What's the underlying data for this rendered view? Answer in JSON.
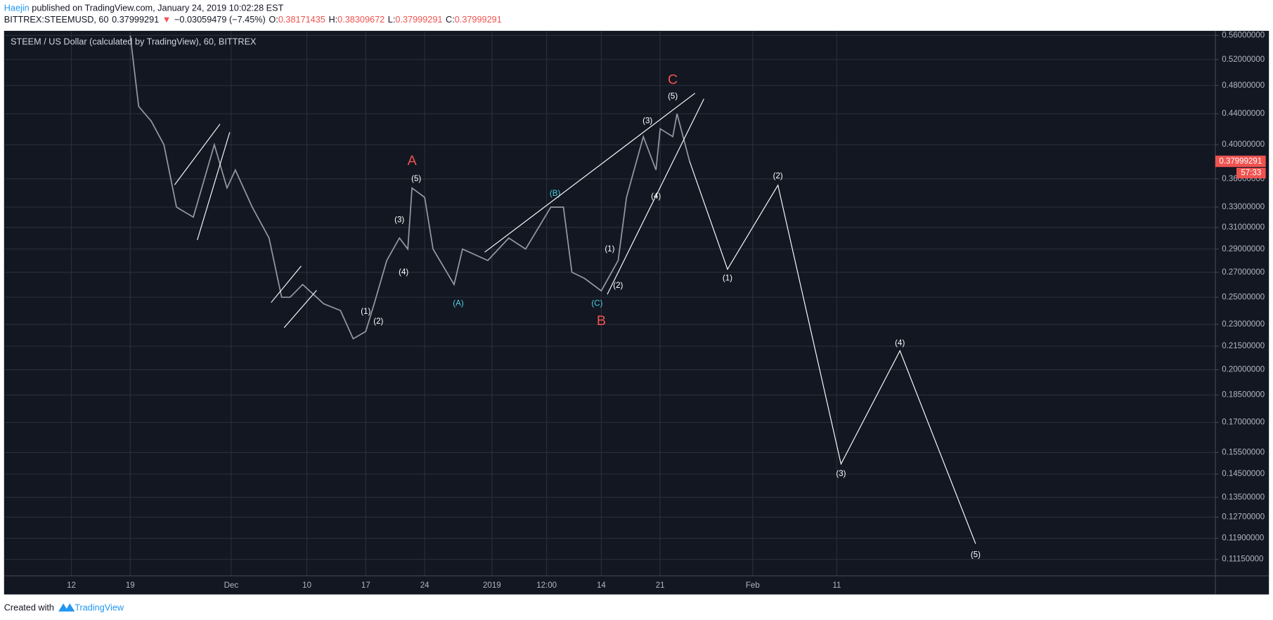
{
  "header": {
    "author": "Haejin",
    "published": " published on TradingView.com, January 24, 2019 10:02:28 EST",
    "symbol": "BITTREX:STEEMUSD, 60",
    "last": "0.37999291",
    "arrow": "▼",
    "change": "−0.03059479 (−7.45%)",
    "o_label": "O:",
    "o": "0.38171435",
    "h_label": "H:",
    "h": "0.38309672",
    "l_label": "L:",
    "l": "0.37999291",
    "c_label": "C:",
    "c": "0.37999291"
  },
  "chart_data": {
    "type": "line",
    "title": "STEEM / US Dollar (calculated by TradingView), 60, BITTREX",
    "log": true,
    "grid": true,
    "xlim": [
      -8,
      136
    ],
    "xticks": [
      {
        "value": 0,
        "label": "12"
      },
      {
        "value": 7,
        "label": "19"
      },
      {
        "value": 19,
        "label": "Dec"
      },
      {
        "value": 28,
        "label": "10"
      },
      {
        "value": 35,
        "label": "17"
      },
      {
        "value": 42,
        "label": "24"
      },
      {
        "value": 50,
        "label": "2019"
      },
      {
        "value": 56.5,
        "label": "12:00"
      },
      {
        "value": 63,
        "label": "14"
      },
      {
        "value": 70,
        "label": "21"
      },
      {
        "value": 81,
        "label": "Feb"
      },
      {
        "value": 91,
        "label": "11"
      }
    ],
    "ylim": [
      0.106,
      0.568
    ],
    "yticks": [
      {
        "value": 0.56,
        "label": "0.56000000"
      },
      {
        "value": 0.52,
        "label": "0.52000000"
      },
      {
        "value": 0.48,
        "label": "0.48000000"
      },
      {
        "value": 0.44,
        "label": "0.44000000"
      },
      {
        "value": 0.4,
        "label": "0.40000000"
      },
      {
        "value": 0.36,
        "label": "0.36000000"
      },
      {
        "value": 0.33,
        "label": "0.33000000"
      },
      {
        "value": 0.31,
        "label": "0.31000000"
      },
      {
        "value": 0.29,
        "label": "0.29000000"
      },
      {
        "value": 0.27,
        "label": "0.27000000"
      },
      {
        "value": 0.25,
        "label": "0.25000000"
      },
      {
        "value": 0.23,
        "label": "0.23000000"
      },
      {
        "value": 0.215,
        "label": "0.21500000"
      },
      {
        "value": 0.2,
        "label": "0.20000000"
      },
      {
        "value": 0.185,
        "label": "0.18500000"
      },
      {
        "value": 0.17,
        "label": "0.17000000"
      },
      {
        "value": 0.155,
        "label": "0.15500000"
      },
      {
        "value": 0.145,
        "label": "0.14500000"
      },
      {
        "value": 0.135,
        "label": "0.13500000"
      },
      {
        "value": 0.127,
        "label": "0.12700000"
      },
      {
        "value": 0.119,
        "label": "0.11900000"
      },
      {
        "value": 0.1115,
        "label": "0.11150000"
      }
    ],
    "series": [
      {
        "color": "#9598a1",
        "x": [
          7,
          8,
          9.5,
          11,
          12.5,
          14.5,
          17,
          18.5,
          19.5,
          21.5,
          23.5,
          25,
          26,
          27.5,
          30,
          32,
          33.5,
          35,
          36,
          37.5,
          39,
          40,
          40.5,
          42,
          43,
          45.5,
          46.5,
          49.5,
          52,
          54,
          57,
          58.5,
          59.5,
          61,
          63,
          65,
          66,
          68,
          69.5,
          70,
          71.5,
          72,
          73.5
        ],
        "values": [
          0.56,
          0.45,
          0.43,
          0.4,
          0.33,
          0.32,
          0.4,
          0.35,
          0.37,
          0.33,
          0.3,
          0.25,
          0.25,
          0.26,
          0.245,
          0.24,
          0.22,
          0.225,
          0.245,
          0.28,
          0.3,
          0.29,
          0.35,
          0.34,
          0.29,
          0.26,
          0.29,
          0.28,
          0.3,
          0.29,
          0.33,
          0.33,
          0.27,
          0.265,
          0.255,
          0.28,
          0.34,
          0.41,
          0.37,
          0.42,
          0.41,
          0.44,
          0.38
        ]
      },
      {
        "color": "#ffffff",
        "x": [
          73.5,
          78,
          84,
          91.5,
          98.5,
          107.5
        ],
        "values": [
          0.38,
          0.2725,
          0.353,
          0.1496,
          0.212,
          0.117
        ]
      }
    ],
    "annotations": [
      {
        "text": "(1)",
        "x": 35,
        "y": 0.239,
        "color": "#ffffff"
      },
      {
        "text": "(2)",
        "x": 36.5,
        "y": 0.232,
        "color": "#ffffff"
      },
      {
        "text": "(3)",
        "x": 39,
        "y": 0.317,
        "color": "#ffffff"
      },
      {
        "text": "(4)",
        "x": 39.5,
        "y": 0.27,
        "color": "#ffffff"
      },
      {
        "text": "(5)",
        "x": 41,
        "y": 0.36,
        "color": "#ffffff"
      },
      {
        "text": "A",
        "x": 40.5,
        "y": 0.38,
        "color": "#ef5350"
      },
      {
        "text": "(A)",
        "x": 46,
        "y": 0.245,
        "color": "#4dd0e1"
      },
      {
        "text": "(B)",
        "x": 57.5,
        "y": 0.344,
        "color": "#4dd0e1"
      },
      {
        "text": "(C)",
        "x": 62.5,
        "y": 0.245,
        "color": "#4dd0e1"
      },
      {
        "text": "B",
        "x": 63,
        "y": 0.232,
        "color": "#ef5350"
      },
      {
        "text": "(1)",
        "x": 64,
        "y": 0.29,
        "color": "#ffffff"
      },
      {
        "text": "(2)",
        "x": 65,
        "y": 0.259,
        "color": "#ffffff"
      },
      {
        "text": "(3)",
        "x": 68.5,
        "y": 0.43,
        "color": "#ffffff"
      },
      {
        "text": "(4)",
        "x": 69.5,
        "y": 0.341,
        "color": "#ffffff"
      },
      {
        "text": "(5)",
        "x": 71.5,
        "y": 0.464,
        "color": "#ffffff"
      },
      {
        "text": "C",
        "x": 71.5,
        "y": 0.488,
        "color": "#ef5350"
      },
      {
        "text": "(1)",
        "x": 78,
        "y": 0.265,
        "color": "#ffffff"
      },
      {
        "text": "(2)",
        "x": 84,
        "y": 0.363,
        "color": "#ffffff"
      },
      {
        "text": "(3)",
        "x": 91.5,
        "y": 0.145,
        "color": "#ffffff"
      },
      {
        "text": "(4)",
        "x": 98.5,
        "y": 0.217,
        "color": "#ffffff"
      },
      {
        "text": "(5)",
        "x": 107.5,
        "y": 0.113,
        "color": "#ffffff"
      }
    ],
    "price_label": "0.37999291",
    "price_value": 0.38,
    "countdown": "57:33"
  },
  "footer": {
    "created": "Created with",
    "brand": "TradingView"
  }
}
